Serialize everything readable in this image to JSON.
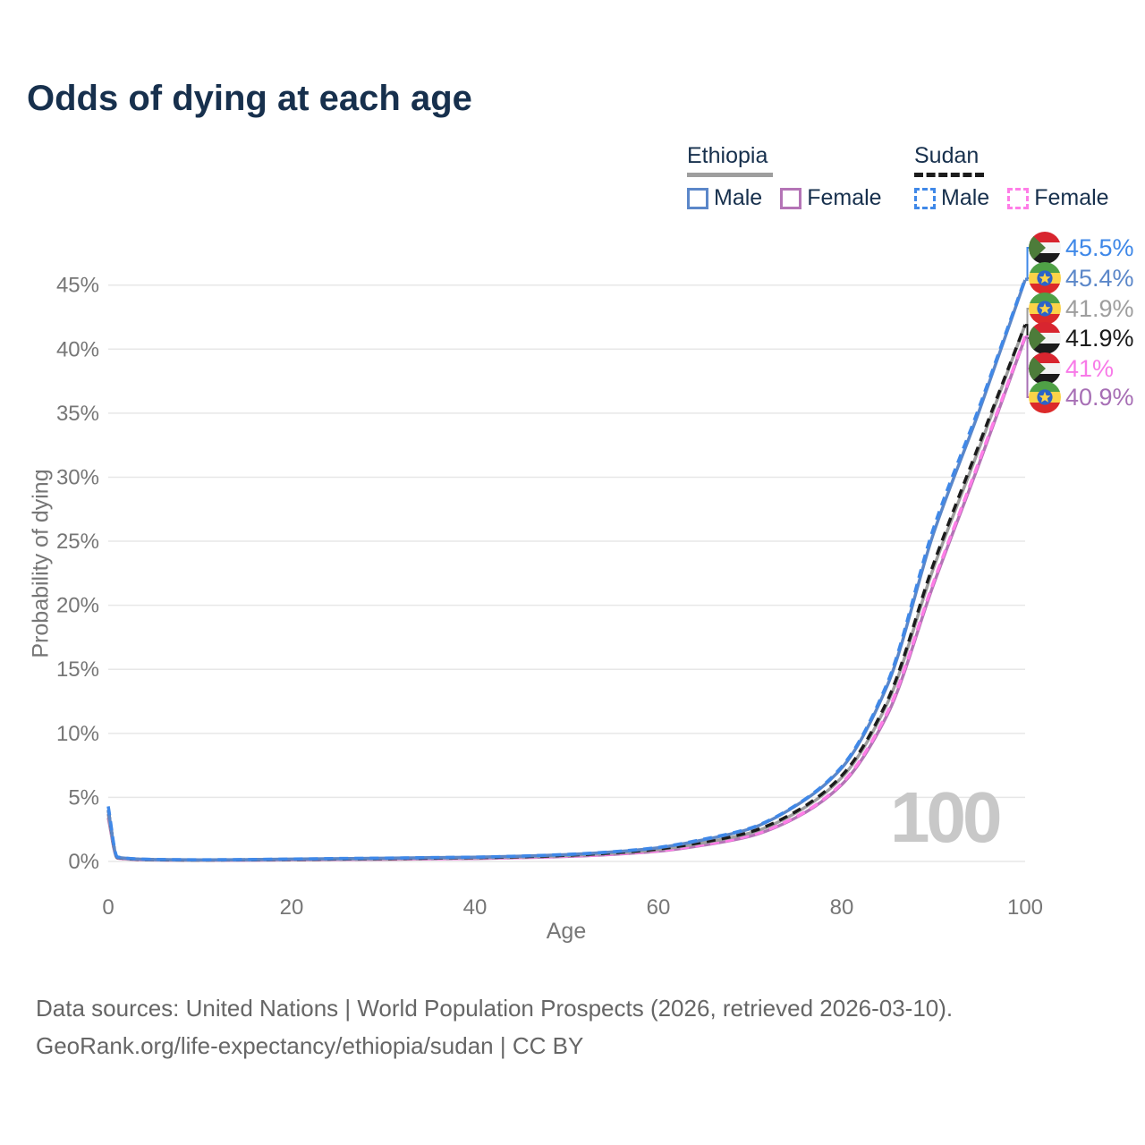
{
  "header": {
    "title": "Odds of dying at each age"
  },
  "legend": {
    "ethiopia": {
      "label": "Ethiopia",
      "male_label": "Male",
      "female_label": "Female"
    },
    "sudan": {
      "label": "Sudan",
      "male_label": "Male",
      "female_label": "Female"
    }
  },
  "colors": {
    "title_text": "#17304d",
    "ethiopia_male": "#5b87c9",
    "ethiopia_female": "#b474b6",
    "ethiopia_both": "#9e9e9e",
    "sudan_male": "#3f88e8",
    "sudan_female": "#ff7de7",
    "sudan_both": "#1c1c1c",
    "gridline": "#e7e7e7",
    "axis_text": "#767676",
    "watermark": "#c8c8c8"
  },
  "chart_data": {
    "type": "line",
    "title": "Odds of dying at each age",
    "xlabel": "Age",
    "ylabel": "Probability of dying",
    "x_ticks": [
      0,
      20,
      40,
      60,
      80,
      100
    ],
    "y_ticks": [
      "0%",
      "5%",
      "10%",
      "15%",
      "20%",
      "25%",
      "30%",
      "35%",
      "40%",
      "45%"
    ],
    "xlim": [
      0,
      100
    ],
    "ylim_percent": [
      0,
      47
    ],
    "grid": "horizontal-only",
    "legend_position": "top-right",
    "ages": [
      0,
      1,
      5,
      10,
      15,
      20,
      25,
      30,
      35,
      40,
      45,
      50,
      55,
      60,
      65,
      70,
      75,
      80,
      85,
      90,
      95,
      100
    ],
    "series": [
      {
        "name": "Ethiopia Female",
        "country": "Ethiopia",
        "sex": "Female",
        "style": "solid",
        "color": "#b474b6",
        "values": [
          3.4,
          0.26,
          0.11,
          0.09,
          0.1,
          0.12,
          0.15,
          0.17,
          0.2,
          0.23,
          0.29,
          0.39,
          0.55,
          0.8,
          1.28,
          1.97,
          3.42,
          6.0,
          11.5,
          21.6,
          31.1,
          40.9
        ]
      },
      {
        "name": "Sudan Female",
        "country": "Sudan",
        "sex": "Female",
        "style": "dashed",
        "color": "#ff7de7",
        "values": [
          3.7,
          0.28,
          0.12,
          0.1,
          0.11,
          0.13,
          0.16,
          0.18,
          0.21,
          0.25,
          0.31,
          0.41,
          0.57,
          0.83,
          1.32,
          2.02,
          3.48,
          6.1,
          11.7,
          21.8,
          31.3,
          41.0
        ]
      },
      {
        "name": "Ethiopia Both sexes",
        "country": "Ethiopia",
        "sex": "Both",
        "style": "solid",
        "color": "#9e9e9e",
        "values": [
          3.7,
          0.29,
          0.13,
          0.1,
          0.12,
          0.15,
          0.18,
          0.21,
          0.25,
          0.28,
          0.35,
          0.46,
          0.64,
          0.93,
          1.47,
          2.22,
          3.8,
          6.55,
          12.4,
          22.9,
          32.3,
          41.9
        ]
      },
      {
        "name": "Sudan Both sexes",
        "country": "Sudan",
        "sex": "Both",
        "style": "dashed",
        "color": "#1c1c1c",
        "values": [
          4.0,
          0.31,
          0.14,
          0.11,
          0.13,
          0.16,
          0.19,
          0.22,
          0.26,
          0.3,
          0.37,
          0.48,
          0.67,
          0.97,
          1.52,
          2.3,
          3.9,
          6.7,
          12.6,
          23.2,
          32.6,
          41.9
        ]
      },
      {
        "name": "Ethiopia Male",
        "country": "Ethiopia",
        "sex": "Male",
        "style": "solid",
        "color": "#5b87c9",
        "values": [
          4.0,
          0.32,
          0.15,
          0.12,
          0.14,
          0.18,
          0.22,
          0.25,
          0.29,
          0.33,
          0.41,
          0.53,
          0.74,
          1.07,
          1.7,
          2.55,
          4.35,
          7.3,
          13.8,
          25.6,
          35.2,
          45.4
        ]
      },
      {
        "name": "Sudan Male",
        "country": "Sudan",
        "sex": "Male",
        "style": "dashed",
        "color": "#3f88e8",
        "values": [
          4.3,
          0.35,
          0.16,
          0.13,
          0.15,
          0.19,
          0.23,
          0.26,
          0.3,
          0.34,
          0.42,
          0.55,
          0.76,
          1.1,
          1.75,
          2.6,
          4.4,
          7.4,
          14.0,
          26.0,
          35.5,
          45.5
        ]
      }
    ],
    "end_labels": [
      {
        "text": "45.5%",
        "flag": "sudan",
        "color": "#3f88e8",
        "value": 45.5
      },
      {
        "text": "45.4%",
        "flag": "ethiopia",
        "color": "#5b87c9",
        "value": 45.4
      },
      {
        "text": "41.9%",
        "flag": "ethiopia",
        "color": "#9e9e9e",
        "value": 41.9
      },
      {
        "text": "41.9%",
        "flag": "sudan",
        "color": "#1c1c1c",
        "value": 41.9
      },
      {
        "text": "41%",
        "flag": "sudan",
        "color": "#f87ae8",
        "value": 41.0
      },
      {
        "text": "40.9%",
        "flag": "ethiopia",
        "color": "#a76fb5",
        "value": 40.9
      }
    ]
  },
  "watermark": {
    "value": "100"
  },
  "footer": {
    "line1": "Data sources: United Nations | World Population Prospects (2026, retrieved 2026-03-10).",
    "line2": "GeoRank.org/life-expectancy/ethiopia/sudan | CC BY"
  }
}
